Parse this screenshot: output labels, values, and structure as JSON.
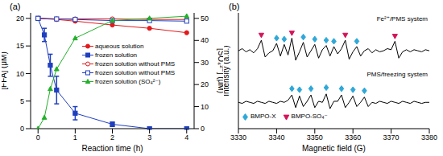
{
  "chart_data": [
    {
      "title": "(a)",
      "type": "line",
      "x_label": "Reaction time (h)",
      "y_label": "[FFA] (μM)",
      "y2_label": "[SO₄²⁻] (μM)",
      "x": [
        0,
        0.17,
        0.33,
        0.5,
        1,
        2,
        3,
        4
      ],
      "xlim": [
        -0.2,
        4.2
      ],
      "xticks": [
        0,
        1,
        2,
        3,
        4
      ],
      "ylim": [
        0,
        21
      ],
      "yticks": [
        0,
        5,
        10,
        15,
        20
      ],
      "y2lim": [
        0,
        52.5
      ],
      "y2ticks": [
        0,
        10,
        20,
        30,
        40,
        50
      ],
      "legend": "right",
      "series": [
        {
          "name": "aqueous solution",
          "color": "#e31a1c",
          "marker": "circle",
          "values": [
            20,
            null,
            null,
            19.8,
            19.5,
            18.8,
            18.2,
            17.4
          ]
        },
        {
          "name": "frozen solution",
          "color": "#1f3fbf",
          "marker": "square",
          "values": [
            20,
            17,
            11.5,
            7,
            2.8,
            0.8,
            0,
            0
          ],
          "errors": [
            0.3,
            1.2,
            2,
            2.5,
            1.2,
            0.4,
            0.1,
            0.1
          ]
        },
        {
          "name": "frozen solution without PMS",
          "color": "#e31a1c",
          "marker": "circle-open",
          "values": [
            20,
            null,
            null,
            19.9,
            19.9,
            19.9,
            19.8,
            19.8
          ]
        },
        {
          "name": "frozen solution without PMS",
          "color": "#1f3fbf",
          "marker": "square-open",
          "values": [
            20,
            null,
            null,
            19.9,
            19.8,
            19.6,
            19.6,
            19.5
          ]
        },
        {
          "name": "frozen solution (SO₄²⁻)",
          "color": "#22b02a",
          "marker": "triangle",
          "axis": "y2",
          "values": [
            0,
            5,
            18,
            27,
            41,
            49,
            50,
            51
          ]
        }
      ]
    },
    {
      "title": "(b)",
      "type": "line",
      "x_label": "Magnetic field (G)",
      "y_label": "Intensity (a.u.)",
      "xlim": [
        3330,
        3380
      ],
      "xticks": [
        3330,
        3340,
        3350,
        3360,
        3370,
        3380
      ],
      "ylim": [
        0,
        11
      ],
      "tick_labels": "x",
      "legend": "lower left",
      "x": [
        3330,
        3331,
        3332,
        3333,
        3334,
        3335,
        3336,
        3337,
        3338,
        3339,
        3340,
        3341,
        3342,
        3343,
        3344,
        3345,
        3346,
        3347,
        3348,
        3349,
        3350,
        3351,
        3352,
        3353,
        3354,
        3355,
        3356,
        3357,
        3358,
        3359,
        3360,
        3361,
        3362,
        3363,
        3364,
        3365,
        3366,
        3367,
        3368,
        3369,
        3370,
        3371,
        3372,
        3373,
        3374,
        3375,
        3376,
        3377,
        3378,
        3379,
        3380
      ],
      "series": [
        {
          "name": "Fe²⁺/PMS system",
          "color": "#000000",
          "values": [
            7.4,
            7.6,
            7.3,
            7.5,
            7.2,
            7.6,
            8.4,
            6.8,
            7.2,
            7.4,
            8.1,
            6.9,
            8.0,
            7.0,
            8.6,
            6.5,
            7.3,
            8.2,
            6.8,
            7.4,
            8.0,
            6.7,
            7.5,
            7.9,
            6.9,
            7.8,
            7.1,
            7.6,
            8.4,
            6.6,
            7.3,
            7.8,
            6.9,
            7.4,
            7.6,
            7.2,
            7.5,
            7.3,
            7.4,
            7.6,
            7.5,
            8.3,
            6.7,
            7.3,
            7.5,
            7.3,
            7.5,
            7.4,
            7.3,
            7.5,
            7.4
          ]
        },
        {
          "name": "PMS/freezing system",
          "color": "#000000",
          "values": [
            2.5,
            2.4,
            2.6,
            2.5,
            2.4,
            2.6,
            2.5,
            2.4,
            2.6,
            2.5,
            2.4,
            2.6,
            2.5,
            2.7,
            3.2,
            2.0,
            3.1,
            2.1,
            2.6,
            3.2,
            2.0,
            2.6,
            2.5,
            3.3,
            1.9,
            2.6,
            2.6,
            3.2,
            2.0,
            2.5,
            3.1,
            2.1,
            2.5,
            3.0,
            2.1,
            2.5,
            2.4,
            2.6,
            2.5,
            2.4,
            2.6,
            2.5,
            2.4,
            2.6,
            2.5,
            2.4,
            2.6,
            2.5,
            2.4,
            2.5,
            2.5
          ]
        },
        {
          "name": "BMPO-X",
          "type": "scatter",
          "color": "#2fa8d8",
          "marker": "diamond",
          "x": [
            3340,
            3342,
            3347,
            3350,
            3353,
            3355,
            3361,
            3344,
            3346,
            3349,
            3353,
            3357,
            3360,
            3363
          ],
          "values": [
            8.6,
            8.5,
            8.7,
            8.5,
            8.4,
            8.3,
            8.3,
            3.8,
            3.7,
            3.8,
            3.9,
            3.8,
            3.7,
            3.6
          ]
        },
        {
          "name": "BMPO-SO₄⁻",
          "type": "scatter",
          "color": "#d4145a",
          "marker": "triangle-down",
          "x": [
            3336,
            3344,
            3358,
            3371
          ],
          "values": [
            8.9,
            9.1,
            8.9,
            8.8
          ]
        }
      ]
    }
  ]
}
